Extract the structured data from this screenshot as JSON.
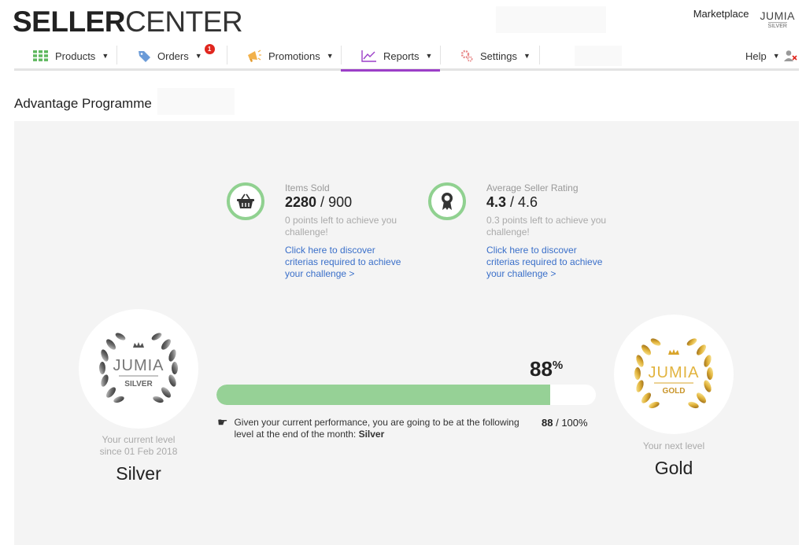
{
  "logo": {
    "bold": "SELLER",
    "light": "CENTER"
  },
  "header": {
    "marketplace": "Marketplace",
    "badge_brand": "JUMIA",
    "badge_level": "SILVER"
  },
  "nav": {
    "products": "Products",
    "orders": "Orders",
    "orders_badge": "1",
    "promotions": "Promotions",
    "reports": "Reports",
    "settings": "Settings",
    "help": "Help"
  },
  "page": {
    "title": "Advantage Programme"
  },
  "items_sold": {
    "label": "Items Sold",
    "current": "2280",
    "target": "900",
    "left": "0 points left to achieve you challenge!",
    "link": "Click here to discover criterias required to achieve your challenge >"
  },
  "seller_rating": {
    "label": "Average Seller Rating",
    "current": "4.3",
    "target": "4.6",
    "left": "0.3 points left to achieve you challenge!",
    "link": "Click here to discover criterias required to achieve your challenge >"
  },
  "current_level": {
    "brand": "JUMIA",
    "badge": "SILVER",
    "caption_1": "Your current level",
    "caption_2": "since 01 Feb 2018",
    "name": "Silver"
  },
  "next_level": {
    "brand": "JUMIA",
    "badge": "GOLD",
    "caption": "Your next level",
    "name": "Gold"
  },
  "progress": {
    "percent": "88",
    "percent_sign": "%",
    "fraction": 0.88,
    "ratio_value": "88",
    "ratio_total": "100%",
    "prediction_text": "Given your current performance, you are going to be at the following level at the end of the month:",
    "prediction_level": "Silver"
  },
  "colors": {
    "accent": "#9c3fc8",
    "progress_fill": "#96d196",
    "link": "#3a6fc9",
    "badge_red": "#e0261e"
  }
}
